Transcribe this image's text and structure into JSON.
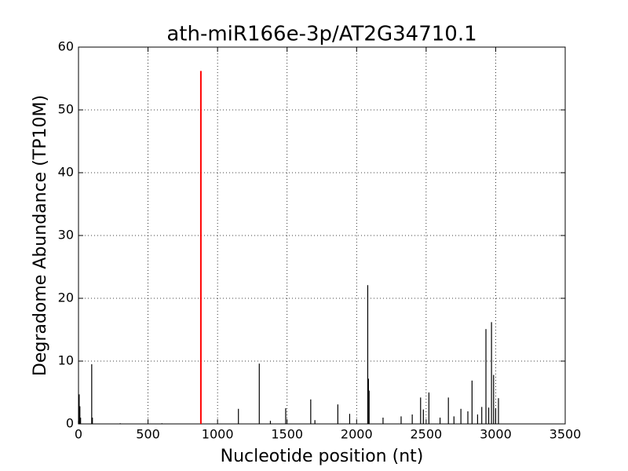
{
  "chart_data": {
    "type": "stem",
    "title": "ath-miR166e-3p/AT2G34710.1",
    "xlabel": "Nucleotide position (nt)",
    "ylabel": "Degradome Abundance (TP10M)",
    "xlim": [
      0,
      3500
    ],
    "xticks": [
      0,
      500,
      1000,
      1500,
      2000,
      2500,
      3000,
      3500
    ],
    "ylim": [
      0,
      60
    ],
    "yticks": [
      0,
      10,
      20,
      30,
      40,
      50,
      60
    ],
    "grid": true,
    "series": [
      {
        "color": "#000000",
        "x": [
          0,
          5,
          10,
          15,
          95,
          100,
          300,
          600,
          1150,
          1300,
          1380,
          1490,
          1670,
          1700,
          1865,
          1950,
          2080,
          2085,
          2090,
          2190,
          2320,
          2400,
          2460,
          2480,
          2520,
          2600,
          2660,
          2700,
          2750,
          2800,
          2830,
          2870,
          2900,
          2930,
          2950,
          2970,
          2985,
          3000,
          3020
        ],
        "values": [
          0.5,
          4.7,
          2.8,
          1.0,
          9.5,
          1.0,
          0.1,
          0.1,
          2.4,
          9.6,
          0.5,
          2.5,
          3.9,
          0.6,
          3.1,
          1.6,
          22.1,
          7.2,
          5.3,
          1.0,
          1.2,
          1.5,
          4.2,
          2.3,
          5.0,
          1.0,
          4.2,
          1.2,
          2.4,
          2.0,
          6.9,
          1.5,
          2.7,
          15.1,
          2.6,
          16.2,
          7.8,
          2.5,
          4.1
        ]
      },
      {
        "color": "#ff0000",
        "x": [
          880
        ],
        "values": [
          56.2
        ]
      }
    ]
  }
}
